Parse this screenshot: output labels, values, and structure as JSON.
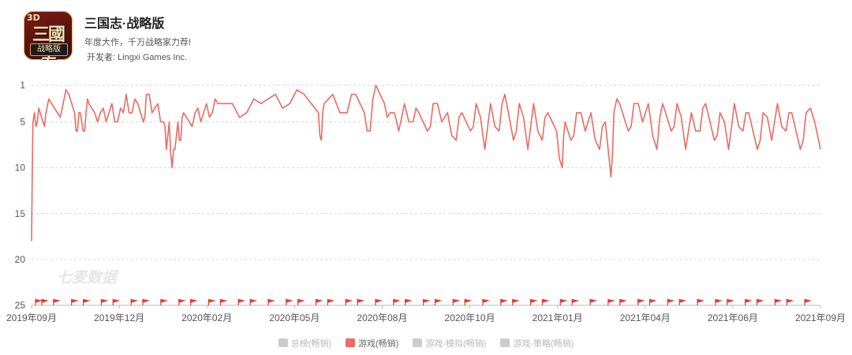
{
  "app": {
    "name": "三国志·战略版",
    "tagline": "年度大作，千万战略家力荐!",
    "developer_label": "开发者:",
    "developer": "Lingxi Games Inc.",
    "icon": {
      "badge": "3D",
      "glyph": "三國志",
      "banner": "战略版"
    }
  },
  "watermark": "七麦数据",
  "colors": {
    "line": "#ec6a62",
    "flag": "#e83a32",
    "grid": "#d6d6d6",
    "axis_text": "#555555",
    "inactive": "#cccccc"
  },
  "legend": [
    {
      "label": "总榜(畅销)",
      "active": false,
      "color": "#cccccc"
    },
    {
      "label": "游戏(畅销)",
      "active": true,
      "color": "#ec6a62"
    },
    {
      "label": "游戏-模拟(畅销)",
      "active": false,
      "color": "#cccccc"
    },
    {
      "label": "游戏-策略(畅销)",
      "active": false,
      "color": "#cccccc"
    }
  ],
  "chart_data": {
    "type": "line",
    "title": "",
    "xlabel": "",
    "ylabel": "",
    "y_inverted": true,
    "ylim": [
      1,
      25
    ],
    "yticks": [
      1,
      5,
      10,
      15,
      20,
      25
    ],
    "grid": "horizontal-dashed",
    "x_tick_labels": [
      "2019年09月",
      "2019年12月",
      "2020年02月",
      "2020年05月",
      "2020年08月",
      "2020年10月",
      "2021年01月",
      "2021年04月",
      "2021年06月",
      "2021年09月"
    ],
    "series": [
      {
        "name": "游戏(畅销)",
        "rank_profile": [
          [
            0,
            18
          ],
          [
            1,
            5
          ],
          [
            2,
            4
          ],
          [
            4,
            5
          ],
          [
            6,
            4
          ],
          [
            8,
            5
          ],
          [
            10,
            4
          ],
          [
            14,
            3
          ],
          [
            18,
            4
          ],
          [
            22,
            3
          ],
          [
            26,
            2
          ],
          [
            30,
            4
          ],
          [
            32,
            6
          ],
          [
            34,
            4
          ],
          [
            36,
            6
          ],
          [
            38,
            4
          ],
          [
            40,
            3
          ],
          [
            44,
            4
          ],
          [
            48,
            4
          ],
          [
            52,
            5
          ],
          [
            56,
            3
          ],
          [
            60,
            5
          ],
          [
            64,
            4
          ],
          [
            66,
            2
          ],
          [
            70,
            4
          ],
          [
            74,
            3
          ],
          [
            78,
            5
          ],
          [
            80,
            2
          ],
          [
            84,
            4
          ],
          [
            88,
            3
          ],
          [
            92,
            5
          ],
          [
            94,
            8
          ],
          [
            96,
            5
          ],
          [
            98,
            10
          ],
          [
            100,
            8
          ],
          [
            102,
            5
          ],
          [
            104,
            7
          ],
          [
            106,
            4
          ],
          [
            110,
            5
          ],
          [
            114,
            4
          ],
          [
            118,
            5
          ],
          [
            122,
            3
          ],
          [
            126,
            4
          ],
          [
            130,
            3
          ],
          [
            140,
            3
          ],
          [
            150,
            4
          ],
          [
            160,
            3
          ],
          [
            170,
            2
          ],
          [
            180,
            3
          ],
          [
            190,
            2
          ],
          [
            200,
            4
          ],
          [
            202,
            7
          ],
          [
            204,
            3
          ],
          [
            210,
            2
          ],
          [
            220,
            4
          ],
          [
            226,
            2
          ],
          [
            232,
            4
          ],
          [
            236,
            6
          ],
          [
            240,
            1
          ],
          [
            246,
            3
          ],
          [
            250,
            4
          ],
          [
            256,
            6
          ],
          [
            260,
            3
          ],
          [
            266,
            5
          ],
          [
            270,
            4
          ],
          [
            276,
            6
          ],
          [
            280,
            3
          ],
          [
            286,
            5
          ],
          [
            290,
            4
          ],
          [
            296,
            7
          ],
          [
            300,
            4
          ],
          [
            306,
            6
          ],
          [
            310,
            3
          ],
          [
            316,
            8
          ],
          [
            320,
            3
          ],
          [
            326,
            6
          ],
          [
            330,
            2
          ],
          [
            336,
            7
          ],
          [
            340,
            3
          ],
          [
            346,
            8
          ],
          [
            350,
            3
          ],
          [
            356,
            7
          ],
          [
            360,
            4
          ],
          [
            366,
            6
          ],
          [
            370,
            10
          ],
          [
            372,
            5
          ],
          [
            376,
            7
          ],
          [
            380,
            4
          ],
          [
            386,
            6
          ],
          [
            390,
            4
          ],
          [
            396,
            8
          ],
          [
            400,
            5
          ],
          [
            404,
            11
          ],
          [
            406,
            4
          ],
          [
            410,
            3
          ],
          [
            416,
            6
          ],
          [
            420,
            3
          ],
          [
            426,
            5
          ],
          [
            430,
            3
          ],
          [
            436,
            8
          ],
          [
            440,
            3
          ],
          [
            446,
            6
          ],
          [
            450,
            3
          ],
          [
            456,
            8
          ],
          [
            460,
            4
          ],
          [
            466,
            6
          ],
          [
            470,
            3
          ],
          [
            476,
            7
          ],
          [
            480,
            4
          ],
          [
            486,
            8
          ],
          [
            490,
            3
          ],
          [
            496,
            6
          ],
          [
            500,
            4
          ],
          [
            506,
            8
          ],
          [
            510,
            4
          ],
          [
            516,
            7
          ],
          [
            520,
            3
          ],
          [
            526,
            6
          ],
          [
            530,
            4
          ],
          [
            536,
            8
          ],
          [
            540,
            4
          ],
          [
            546,
            5
          ],
          [
            550,
            8
          ]
        ]
      }
    ],
    "rank_extremes": {
      "min_rank": 1,
      "max_rank": 18
    },
    "event_markers_count": 52
  }
}
